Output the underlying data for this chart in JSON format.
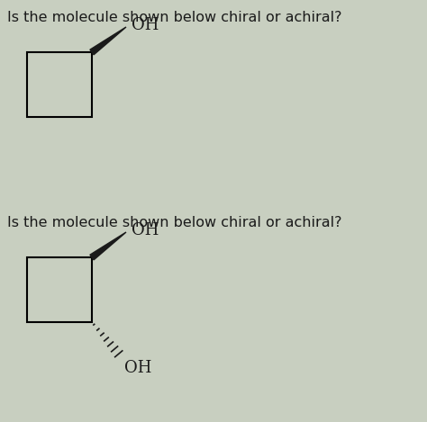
{
  "background_color": "#c8cfc0",
  "title1": "Is the molecule shown below chiral or achiral?",
  "title2": "Is the molecule shown below chiral or achiral?",
  "title_fontsize": 11.5,
  "title_fontweight": "normal",
  "text_color": "#1a1a1a",
  "mol1_oh": "OH",
  "mol2_oh_top": "OH",
  "mol2_oh_bottom": "OH"
}
